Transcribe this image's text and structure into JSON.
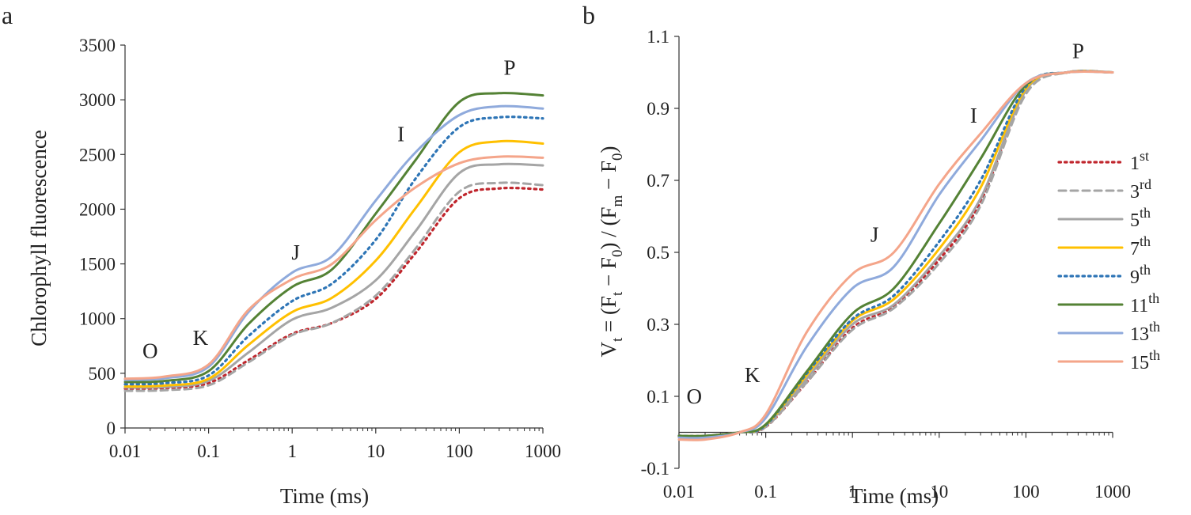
{
  "figure": {
    "panels": [
      "a",
      "b"
    ]
  },
  "chart_data": [
    {
      "type": "line",
      "panel": "a",
      "xscale": "log",
      "xlim": [
        0.01,
        1000
      ],
      "ylim": [
        0,
        3500
      ],
      "xlabel": "Time (ms)",
      "ylabel": "Chlorophyll fluorescence",
      "xticks": [
        "0.01",
        "0.1",
        "1",
        "10",
        "100",
        "1000"
      ],
      "yticks": [
        "0",
        "500",
        "1000",
        "1500",
        "2000",
        "2500",
        "3000",
        "3500"
      ],
      "xtick_values": [
        0.01,
        0.1,
        1,
        10,
        100,
        1000
      ],
      "ytick_values": [
        0,
        500,
        1000,
        1500,
        2000,
        2500,
        3000,
        3500
      ],
      "grid": false,
      "annotations": [
        {
          "text": "O",
          "x": 0.02,
          "y": 640
        },
        {
          "text": "K",
          "x": 0.08,
          "y": 760
        },
        {
          "text": "J",
          "x": 1.1,
          "y": 1540
        },
        {
          "text": "I",
          "x": 20,
          "y": 2620
        },
        {
          "text": "P",
          "x": 400,
          "y": 3230
        }
      ],
      "x": [
        0.01,
        0.03,
        0.1,
        0.3,
        1,
        3,
        10,
        30,
        100,
        300,
        1000
      ],
      "series": [
        {
          "name": "1st",
          "sup": "st",
          "base": "1",
          "color": "#c0262d",
          "dash": "dot",
          "values": [
            360,
            365,
            410,
            620,
            860,
            960,
            1180,
            1600,
            2100,
            2190,
            2180
          ]
        },
        {
          "name": "3rd",
          "sup": "rd",
          "base": "3",
          "color": "#a5a5a5",
          "dash": "dash",
          "values": [
            340,
            345,
            390,
            600,
            850,
            960,
            1210,
            1640,
            2160,
            2240,
            2220
          ]
        },
        {
          "name": "5th",
          "sup": "th",
          "base": "5",
          "color": "#a5a5a5",
          "dash": "solid",
          "values": [
            370,
            375,
            430,
            690,
            990,
            1100,
            1350,
            1800,
            2330,
            2410,
            2400
          ]
        },
        {
          "name": "7th",
          "sup": "th",
          "base": "7",
          "color": "#ffc000",
          "dash": "solid",
          "values": [
            380,
            388,
            450,
            760,
            1060,
            1190,
            1530,
            2010,
            2520,
            2620,
            2600
          ]
        },
        {
          "name": "9th",
          "sup": "th",
          "base": "9",
          "color": "#2e75b6",
          "dash": "dot",
          "values": [
            400,
            410,
            480,
            840,
            1160,
            1320,
            1720,
            2280,
            2750,
            2840,
            2830
          ]
        },
        {
          "name": "11th",
          "sup": "th",
          "base": "11",
          "color": "#548235",
          "dash": "solid",
          "values": [
            420,
            430,
            520,
            950,
            1290,
            1450,
            1960,
            2450,
            2980,
            3060,
            3040
          ]
        },
        {
          "name": "13th",
          "sup": "th",
          "base": "13",
          "color": "#8faadc",
          "dash": "solid",
          "values": [
            440,
            455,
            560,
            1060,
            1420,
            1570,
            2080,
            2520,
            2860,
            2940,
            2920
          ]
        },
        {
          "name": "15th",
          "sup": "th",
          "base": "15",
          "color": "#f4a58a",
          "dash": "solid",
          "values": [
            450,
            470,
            580,
            1080,
            1360,
            1500,
            1900,
            2200,
            2420,
            2480,
            2470
          ]
        }
      ]
    },
    {
      "type": "line",
      "panel": "b",
      "xscale": "log",
      "xlim": [
        0.01,
        1000
      ],
      "ylim": [
        -0.1,
        1.1
      ],
      "xlabel": "Time (ms)",
      "ylabel": "Vt = (Ft − F0) / (Fm − F0)",
      "ylabel_parts": {
        "v": "V",
        "t": "t",
        "eq_open": " = (F",
        "minus1": " − F",
        "zero": "0",
        "mid": ") / (F",
        "m": "m",
        "minus2": " − F",
        "close": ")"
      },
      "xticks": [
        "0.01",
        "0.1",
        "1",
        "10",
        "100",
        "1000"
      ],
      "yticks": [
        "-0.1",
        "0.1",
        "0.3",
        "0.5",
        "0.7",
        "0.9",
        "1.1"
      ],
      "xtick_values": [
        0.01,
        0.1,
        1,
        10,
        100,
        1000
      ],
      "ytick_values": [
        -0.1,
        0.1,
        0.3,
        0.5,
        0.7,
        0.9,
        1.1
      ],
      "grid": false,
      "legend": "right",
      "annotations": [
        {
          "text": "O",
          "x": 0.015,
          "y": 0.08
        },
        {
          "text": "K",
          "x": 0.07,
          "y": 0.14
        },
        {
          "text": "J",
          "x": 1.8,
          "y": 0.53
        },
        {
          "text": "I",
          "x": 25,
          "y": 0.86
        },
        {
          "text": "P",
          "x": 400,
          "y": 1.04
        }
      ],
      "x": [
        0.01,
        0.02,
        0.05,
        0.1,
        0.3,
        1,
        3,
        10,
        30,
        100,
        300,
        1000
      ],
      "series": [
        {
          "name": "1st",
          "color": "#c0262d",
          "dash": "dot",
          "values": [
            -0.01,
            -0.01,
            0.0,
            0.015,
            0.14,
            0.29,
            0.35,
            0.48,
            0.64,
            0.95,
            1.0,
            1.0
          ]
        },
        {
          "name": "3rd",
          "color": "#a5a5a5",
          "dash": "dash",
          "values": [
            -0.01,
            -0.01,
            0.0,
            0.015,
            0.14,
            0.285,
            0.345,
            0.47,
            0.63,
            0.94,
            1.0,
            1.0
          ]
        },
        {
          "name": "5th",
          "color": "#a5a5a5",
          "dash": "solid",
          "values": [
            -0.01,
            -0.01,
            0.0,
            0.018,
            0.15,
            0.3,
            0.355,
            0.49,
            0.65,
            0.95,
            1.0,
            1.0
          ]
        },
        {
          "name": "7th",
          "color": "#ffc000",
          "dash": "solid",
          "values": [
            -0.01,
            -0.01,
            0.0,
            0.02,
            0.16,
            0.31,
            0.37,
            0.51,
            0.68,
            0.955,
            1.0,
            1.0
          ]
        },
        {
          "name": "9th",
          "color": "#2e75b6",
          "dash": "dot",
          "values": [
            -0.01,
            -0.01,
            0.0,
            0.02,
            0.165,
            0.315,
            0.38,
            0.53,
            0.7,
            0.96,
            1.0,
            1.0
          ]
        },
        {
          "name": "11th",
          "color": "#548235",
          "dash": "solid",
          "values": [
            -0.01,
            -0.01,
            0.0,
            0.022,
            0.17,
            0.33,
            0.4,
            0.58,
            0.76,
            0.965,
            1.0,
            1.0
          ]
        },
        {
          "name": "13th",
          "color": "#8faadc",
          "dash": "solid",
          "values": [
            -0.015,
            -0.015,
            0.0,
            0.04,
            0.24,
            0.4,
            0.46,
            0.66,
            0.81,
            0.97,
            1.0,
            1.0
          ]
        },
        {
          "name": "15th",
          "color": "#f4a58a",
          "dash": "solid",
          "values": [
            -0.02,
            -0.02,
            0.0,
            0.05,
            0.28,
            0.44,
            0.5,
            0.69,
            0.83,
            0.97,
            1.0,
            1.0
          ]
        }
      ]
    }
  ]
}
